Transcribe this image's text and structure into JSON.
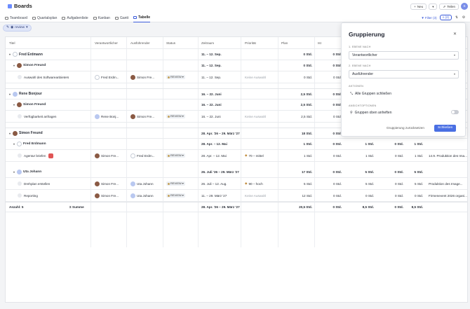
{
  "app": {
    "title": "Boards"
  },
  "header_actions": {
    "new_label": "Neu",
    "share_label": "Teilen",
    "user_initial": "S"
  },
  "tabs": [
    {
      "label": "Teamboard"
    },
    {
      "label": "Quartalsplan"
    },
    {
      "label": "Aufgabenliste"
    },
    {
      "label": "Kanban"
    },
    {
      "label": "Gantt"
    },
    {
      "label": "Tabelle"
    }
  ],
  "toolbar": {
    "filter_label": "Filter (3)",
    "group_label": "(2)"
  },
  "filter_chip": {
    "label": "review"
  },
  "columns": [
    "Titel",
    "Verantwortlicher",
    "Ausführender",
    "Status",
    "Zeitraum",
    "Priorität",
    "Plan",
    "Ist"
  ],
  "rows": [
    {
      "level": 1,
      "title": "Fred Erdmann",
      "period": "11. – 12. Sep.",
      "plan": "0 Std.",
      "actual": "0 Std."
    },
    {
      "level": 2,
      "title": "Simon Freund",
      "period": "11. – 12. Sep.",
      "plan": "0 Std.",
      "actual": "0 Std."
    },
    {
      "level": 3,
      "title": "Auswahl des Softwareanbieters",
      "owner": "Fred Erdm...",
      "assignee": "Simon Fre...",
      "status": "REVIEW",
      "period": "11. – 12. Sep.",
      "priority": "Keine Auswahl",
      "plan": "0 Std.",
      "actual": "0 Std."
    },
    {
      "level": 1,
      "title": "Rene Bonjour",
      "period": "16. – 22. Juni",
      "plan": "2,5 Std.",
      "actual": "0 Std."
    },
    {
      "level": 2,
      "title": "Simon Freund",
      "period": "16. – 22. Juni",
      "plan": "2,5 Std.",
      "actual": "0 Std."
    },
    {
      "level": 3,
      "title": "Verfügbarkeit anfragen",
      "owner": "Rene Bonj...",
      "assignee": "Simon Fre...",
      "status": "REVIEW",
      "period": "16. – 22. Juni",
      "priority": "Keine Auswahl",
      "plan": "2,5 Std.",
      "actual": "0 Std."
    },
    {
      "level": 1,
      "title": "Simon Freund",
      "period": "28. Apr. '26 – 29. März '27",
      "plan": "18 Std.",
      "actual": "0 Std."
    },
    {
      "level": 2,
      "title": "Fred Erdmann",
      "period": "28. Apr. – 12. Mai",
      "plan": "1 Std.",
      "actual": "0 Std.",
      "c9": "1 Std.",
      "c10": "0 Std.",
      "c11": "1 Std."
    },
    {
      "level": 3,
      "title": "Agentur briefen",
      "owner": "Simon Fre...",
      "assignee": "Fred Erdm...",
      "status": "REVIEW",
      "period": "28. Apr. – 12. Mai",
      "priority": "70 – mittel",
      "plan": "1 Std.",
      "actual": "0 Std.",
      "c9": "1 Std.",
      "c10": "0 Std.",
      "c11": "1 Std.",
      "c12": "14.9. Produktion des Ima..."
    },
    {
      "level": 2,
      "title": "Uta Johann",
      "period": "26. Juli '26 – 29. März '27",
      "plan": "17 Std.",
      "actual": "0 Std.",
      "c9": "5 Std.",
      "c10": "0 Std.",
      "c11": "5 Std."
    },
    {
      "level": 3,
      "title": "Drehplan erstellen",
      "owner": "Simon Fre...",
      "assignee": "Uta Johann",
      "status": "REVIEW",
      "period": "26. Juli – 12. Aug.",
      "priority": "90 – hoch",
      "plan": "5 Std.",
      "actual": "0 Std.",
      "c9": "5 Std.",
      "c10": "0 Std.",
      "c11": "5 Std.",
      "c12": "Produktion des Image..."
    },
    {
      "level": 3,
      "title": "Reporting",
      "owner": "Simon Fre...",
      "assignee": "Uta Johann",
      "status": "REVIEW",
      "period": "11. – 29. März '27",
      "priority": "Keine Auswahl",
      "plan": "12 Std.",
      "actual": "0 Std.",
      "c9": "0 Std.",
      "c10": "0 Std.",
      "c11": "0 Std.",
      "c12": "Firmenevent 2026 organi..."
    }
  ],
  "footer": {
    "count": "Anzahl: 5",
    "sum_label": "Summe",
    "period": "28. Apr. '26 – 29. März '27",
    "plan": "20,5 Std.",
    "actual": "0 Std.",
    "c9": "8,5 Std.",
    "c10": "0 Std.",
    "c11": "8,5 Std."
  },
  "panel": {
    "title": "Gruppierung",
    "level1_label": "1. EBENE NACH",
    "level1_value": "Verantwortlicher",
    "level2_label": "2. EBENE NACH",
    "level2_value": "Ausführender",
    "actions_label": "AKTIONEN",
    "collapse_label": "Alle Gruppen schließen",
    "view_label": "ANSICHTOPTIONEN",
    "pin_label": "Gruppen oben anheften",
    "reset_label": "Gruppierung zurücksetzen",
    "close_label": "Schließen"
  }
}
